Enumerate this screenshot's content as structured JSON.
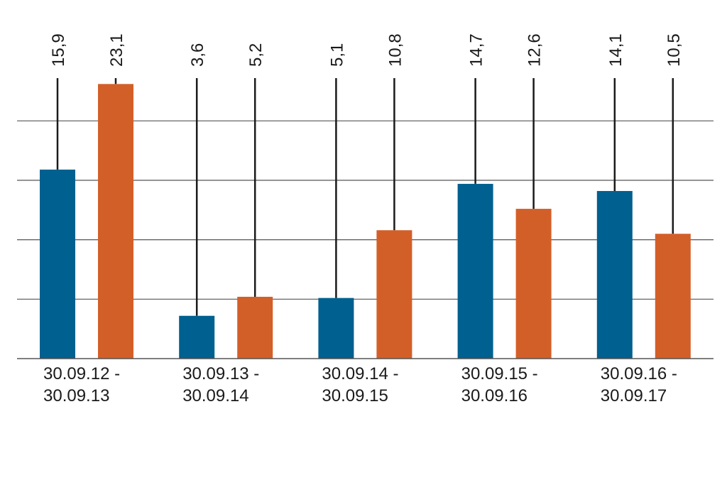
{
  "chart_data": {
    "type": "bar",
    "categories": [
      [
        "30.09.12 -",
        "30.09.13"
      ],
      [
        "30.09.13 -",
        "30.09.14"
      ],
      [
        "30.09.14 -",
        "30.09.15"
      ],
      [
        "30.09.15 -",
        "30.09.16"
      ],
      [
        "30.09.16 -",
        "30.09.17"
      ]
    ],
    "series": [
      {
        "color": "#00608f",
        "values": [
          15.9,
          3.6,
          5.1,
          14.7,
          14.1
        ],
        "labels": [
          "15,9",
          "3,6",
          "5,1",
          "14,7",
          "14,1"
        ]
      },
      {
        "color": "#d35f28",
        "values": [
          23.1,
          5.2,
          10.8,
          12.6,
          10.5
        ],
        "labels": [
          "23,1",
          "5,2",
          "10,8",
          "12,6",
          "10,5"
        ]
      }
    ],
    "ylim": [
      0,
      25
    ],
    "grid_values": [
      5,
      10,
      15,
      20
    ],
    "grid": true,
    "legend": "none",
    "title": "",
    "xlabel": "",
    "ylabel": ""
  }
}
